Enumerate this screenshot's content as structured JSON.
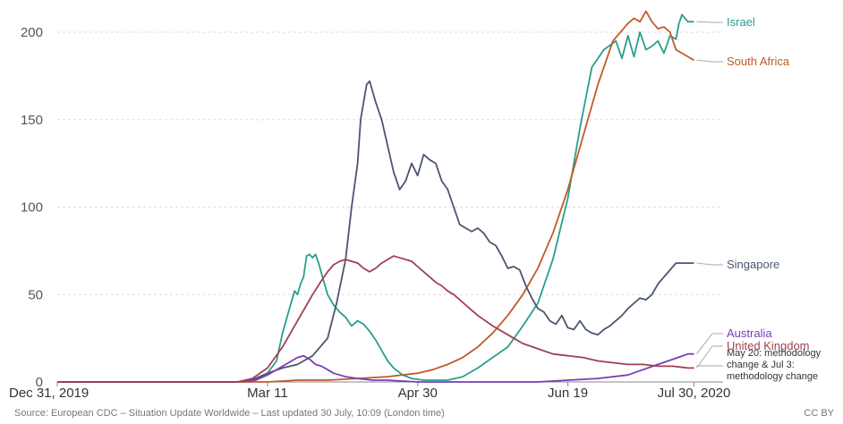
{
  "chart_data": {
    "type": "line",
    "x_ticks": [
      "Dec 31, 2019",
      "Mar 11",
      "Apr 30",
      "Jun 19",
      "Jul 30, 2020"
    ],
    "y_ticks": [
      "0",
      "50",
      "100",
      "150",
      "200"
    ],
    "xlim": [
      0,
      212
    ],
    "ylim": [
      0,
      215
    ],
    "grid": true,
    "series": [
      {
        "name": "Israel",
        "color": "#2a9d8f",
        "x": [
          0,
          60,
          66,
          70,
          73,
          75,
          77,
          79,
          80,
          81,
          82,
          83,
          84,
          85,
          86,
          87,
          88,
          90,
          92,
          94,
          96,
          98,
          100,
          102,
          104,
          106,
          108,
          110,
          112,
          115,
          118,
          122,
          126,
          130,
          135,
          140,
          145,
          150,
          155,
          160,
          165,
          170,
          174,
          178,
          182,
          186,
          188,
          190,
          192,
          194,
          196,
          198,
          200,
          202,
          204,
          206,
          207,
          208,
          209,
          210,
          212
        ],
        "y": [
          0,
          0,
          1,
          5,
          12,
          28,
          40,
          52,
          50,
          56,
          60,
          72,
          73,
          71,
          73,
          68,
          62,
          50,
          44,
          40,
          37,
          32,
          35,
          33,
          29,
          24,
          18,
          12,
          8,
          4,
          2,
          1,
          1,
          1,
          3,
          8,
          14,
          20,
          32,
          45,
          70,
          105,
          145,
          180,
          190,
          195,
          185,
          198,
          186,
          200,
          190,
          192,
          195,
          188,
          198,
          196,
          205,
          210,
          208,
          206,
          206
        ]
      },
      {
        "name": "South Africa",
        "color": "#c05a28",
        "x": [
          0,
          60,
          70,
          80,
          90,
          100,
          110,
          120,
          125,
          130,
          135,
          140,
          145,
          150,
          155,
          160,
          165,
          170,
          175,
          180,
          185,
          190,
          192,
          194,
          196,
          198,
          200,
          202,
          204,
          206,
          208,
          210,
          212
        ],
        "y": [
          0,
          0,
          0,
          1,
          1,
          2,
          3,
          5,
          7,
          10,
          14,
          20,
          28,
          38,
          50,
          65,
          85,
          110,
          140,
          170,
          195,
          205,
          208,
          206,
          212,
          206,
          202,
          203,
          200,
          190,
          188,
          186,
          184
        ]
      },
      {
        "name": "Singapore",
        "color": "#4a5670",
        "x": [
          0,
          60,
          66,
          70,
          75,
          80,
          85,
          90,
          93,
          96,
          98,
          100,
          101,
          102,
          103,
          104,
          106,
          108,
          110,
          112,
          114,
          116,
          118,
          120,
          122,
          124,
          126,
          128,
          130,
          132,
          134,
          136,
          138,
          140,
          142,
          144,
          146,
          148,
          150,
          152,
          154,
          156,
          158,
          160,
          162,
          164,
          166,
          168,
          170,
          172,
          174,
          176,
          178,
          180,
          182,
          184,
          186,
          188,
          190,
          192,
          194,
          196,
          198,
          200,
          202,
          204,
          206,
          208,
          210,
          212
        ],
        "y": [
          0,
          0,
          2,
          5,
          8,
          10,
          15,
          25,
          45,
          70,
          100,
          125,
          150,
          160,
          170,
          172,
          160,
          150,
          135,
          120,
          110,
          115,
          125,
          118,
          130,
          127,
          125,
          115,
          110,
          100,
          90,
          88,
          86,
          88,
          85,
          80,
          78,
          72,
          65,
          66,
          64,
          55,
          48,
          42,
          40,
          35,
          33,
          38,
          31,
          30,
          35,
          30,
          28,
          27,
          30,
          32,
          35,
          38,
          42,
          45,
          48,
          47,
          50,
          56,
          60,
          64,
          68,
          68,
          68,
          68
        ]
      },
      {
        "name": "Australia",
        "color": "#7a3db8",
        "x": [
          0,
          60,
          66,
          70,
          74,
          78,
          80,
          82,
          84,
          86,
          88,
          90,
          92,
          94,
          96,
          100,
          105,
          110,
          120,
          130,
          140,
          150,
          160,
          170,
          180,
          190,
          195,
          200,
          205,
          210,
          212
        ],
        "y": [
          0,
          0,
          1,
          4,
          8,
          12,
          14,
          15,
          13,
          10,
          9,
          7,
          5,
          4,
          3,
          2,
          1,
          1,
          0,
          0,
          0,
          0,
          0,
          1,
          2,
          4,
          7,
          10,
          13,
          16,
          16
        ]
      },
      {
        "name": "United Kingdom",
        "color": "#a04050",
        "x": [
          0,
          60,
          65,
          70,
          75,
          80,
          85,
          88,
          90,
          92,
          94,
          96,
          98,
          100,
          102,
          104,
          106,
          108,
          110,
          112,
          114,
          116,
          118,
          120,
          122,
          124,
          126,
          128,
          130,
          132,
          134,
          136,
          138,
          140,
          145,
          150,
          155,
          160,
          165,
          170,
          175,
          180,
          185,
          190,
          195,
          200,
          205,
          210,
          212
        ],
        "y": [
          0,
          0,
          2,
          8,
          20,
          35,
          50,
          58,
          63,
          67,
          69,
          70,
          69,
          68,
          65,
          63,
          65,
          68,
          70,
          72,
          71,
          70,
          69,
          66,
          63,
          60,
          57,
          55,
          52,
          50,
          47,
          44,
          41,
          38,
          32,
          27,
          22,
          19,
          16,
          15,
          14,
          12,
          11,
          10,
          10,
          9,
          9,
          8,
          8
        ]
      }
    ],
    "annotation": [
      "May 20: methodology",
      "change & Jul 3:",
      "methodology change"
    ],
    "source": "Source: European CDC – Situation Update Worldwide – Last updated 30 July, 10:09 (London time)",
    "license": "CC BY"
  }
}
